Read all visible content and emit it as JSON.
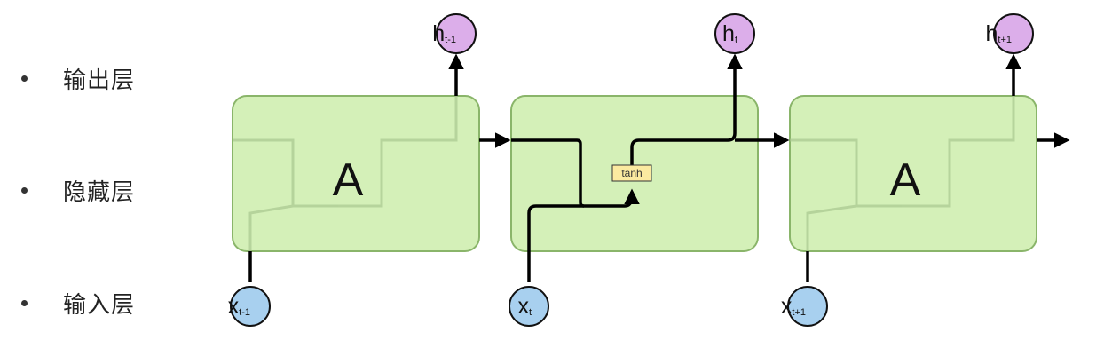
{
  "legend": {
    "output_layer": "输出层",
    "hidden_layer": "隐藏层",
    "input_layer": "输入层"
  },
  "cells": {
    "left_label": "A",
    "right_label": "A",
    "activation": "tanh"
  },
  "nodes": {
    "h_prev": {
      "main": "h",
      "sub": "t-1"
    },
    "h_curr": {
      "main": "h",
      "sub": "t"
    },
    "h_next": {
      "main": "h",
      "sub": "t+1"
    },
    "x_prev": {
      "main": "x",
      "sub": "t-1"
    },
    "x_curr": {
      "main": "x",
      "sub": "t"
    },
    "x_next": {
      "main": "x",
      "sub": "t+1"
    }
  },
  "colors": {
    "cell_fill": "#d4f0b8",
    "cell_stroke": "#8ab56a",
    "output_node": "#dcaeea",
    "input_node": "#a8d0ef",
    "node_stroke": "#111111",
    "tanh_fill": "#fbeaa0"
  }
}
